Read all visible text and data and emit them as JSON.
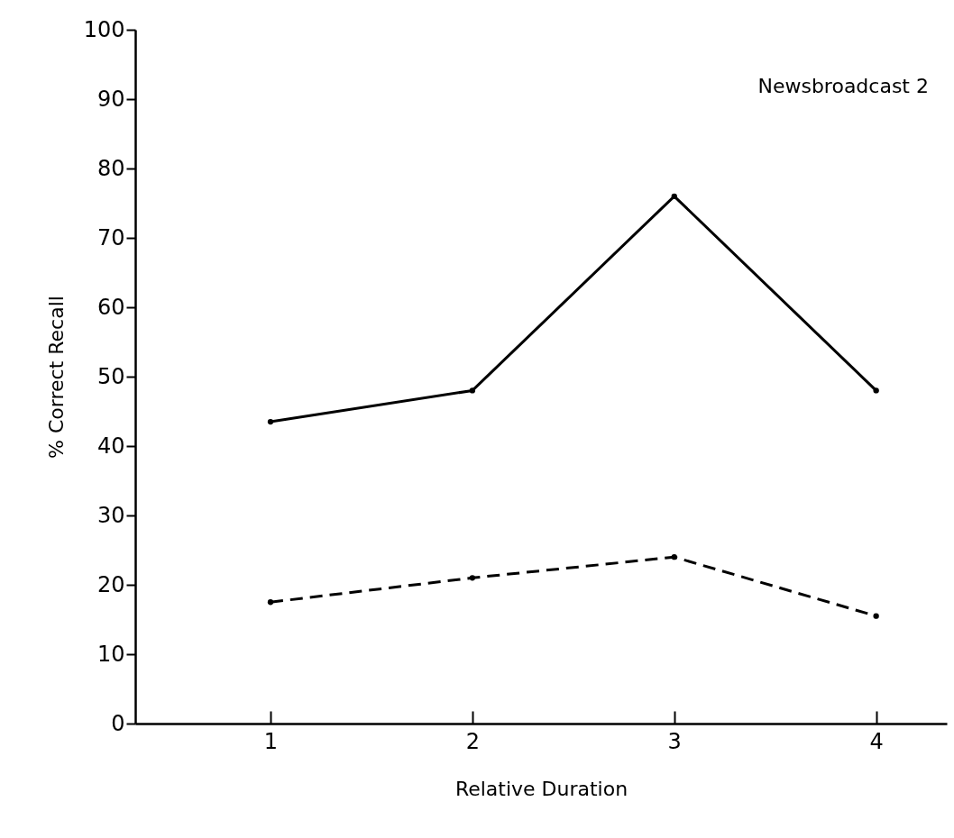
{
  "chart_data": {
    "type": "line",
    "xlabel": "Relative Duration",
    "ylabel": "% Correct Recall",
    "annotations": [
      "Newsbroadcast 2"
    ],
    "x": [
      1,
      2,
      3,
      4
    ],
    "series": [
      {
        "color": "#000000",
        "line_style": "solid",
        "values": [
          43.5,
          48,
          76,
          48
        ]
      },
      {
        "color": "#000000",
        "line_style": "dashed",
        "values": [
          17.5,
          21,
          24,
          15.5
        ]
      }
    ],
    "xlim": [
      0.33,
      4.35
    ],
    "xticks": [
      1,
      2,
      3,
      4
    ],
    "ylim": [
      0,
      100
    ],
    "yticks": [
      0,
      10,
      20,
      30,
      40,
      50,
      60,
      70,
      80,
      90,
      100
    ],
    "marker": "circle"
  }
}
